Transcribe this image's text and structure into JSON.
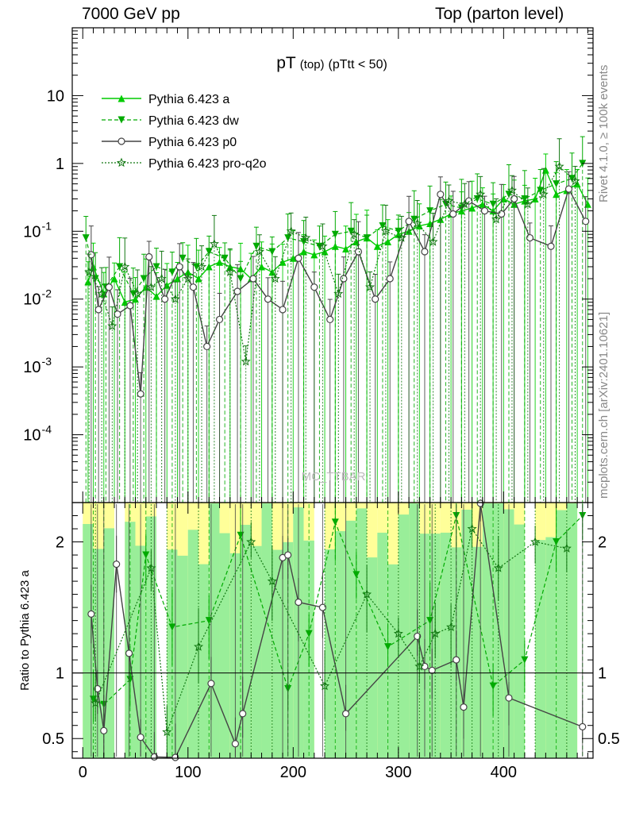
{
  "header": {
    "left": "7000 GeV pp",
    "right": "Top (parton level)"
  },
  "side_labels": {
    "rivet": "Rivet 4.1.0, ≥ 100k events",
    "mcplots": "mcplots.cern.ch [arXiv:2401.10621]"
  },
  "watermark": "MC_TTBAR",
  "colors": {
    "pythia_a": "#00cc00",
    "pythia_dw": "#00aa00",
    "pythia_p0": "#444444",
    "pythia_proq2o": "#117711",
    "band_green": "#99ee99",
    "band_yellow": "#ffff99"
  },
  "chart_data": [
    {
      "type": "line",
      "title": "pT",
      "title_sub": "(top)",
      "title_cut": "(pTtt < 50)",
      "xlabel": "",
      "ylabel": "",
      "yscale": "log",
      "ylim": [
        1e-05,
        100
      ],
      "xlim": [
        -10,
        485
      ],
      "ytick_labels": [
        "10",
        "1",
        "10^-1",
        "10^-2",
        "10^-3",
        "10^-4"
      ],
      "legend": [
        "Pythia 6.423 a",
        "Pythia 6.423 dw",
        "Pythia 6.423 p0",
        "Pythia 6.423 pro-q2o"
      ],
      "legend_position": "top-left",
      "series": [
        {
          "name": "Pythia 6.423 a",
          "x": [
            5,
            10,
            20,
            30,
            40,
            50,
            60,
            70,
            80,
            90,
            100,
            110,
            120,
            130,
            140,
            150,
            160,
            170,
            180,
            190,
            200,
            210,
            220,
            230,
            240,
            250,
            260,
            270,
            280,
            290,
            300,
            310,
            320,
            330,
            340,
            350,
            360,
            370,
            380,
            390,
            400,
            410,
            420,
            430,
            440,
            450,
            460,
            470,
            480
          ],
          "y": [
            0.018,
            0.03,
            0.012,
            0.02,
            0.009,
            0.01,
            0.015,
            0.011,
            0.016,
            0.02,
            0.025,
            0.02,
            0.03,
            0.035,
            0.03,
            0.028,
            0.02,
            0.03,
            0.025,
            0.035,
            0.04,
            0.05,
            0.045,
            0.05,
            0.06,
            0.055,
            0.07,
            0.08,
            0.06,
            0.07,
            0.09,
            0.1,
            0.12,
            0.13,
            0.15,
            0.18,
            0.2,
            0.22,
            0.25,
            0.2,
            0.3,
            0.25,
            0.28,
            0.3,
            0.8,
            0.35,
            0.4,
            0.5,
            0.25
          ]
        },
        {
          "name": "Pythia 6.423 dw",
          "x": [
            3,
            12,
            22,
            35,
            48,
            58,
            70,
            85,
            95,
            108,
            120,
            135,
            150,
            165,
            180,
            195,
            210,
            225,
            240,
            255,
            270,
            285,
            300,
            315,
            330,
            345,
            360,
            375,
            390,
            405,
            420,
            435,
            450,
            465,
            475
          ],
          "y": [
            0.08,
            0.02,
            0.015,
            0.03,
            0.012,
            0.02,
            0.03,
            0.025,
            0.04,
            0.03,
            0.05,
            0.04,
            0.02,
            0.06,
            0.05,
            0.08,
            0.07,
            0.06,
            0.09,
            0.1,
            0.08,
            0.12,
            0.1,
            0.15,
            0.2,
            0.25,
            0.22,
            0.3,
            0.25,
            0.35,
            0.3,
            0.4,
            0.5,
            0.6,
            1.0
          ]
        },
        {
          "name": "Pythia 6.423 p0",
          "x": [
            8,
            15,
            25,
            33,
            45,
            55,
            63,
            78,
            92,
            105,
            118,
            130,
            147,
            162,
            176,
            190,
            205,
            220,
            235,
            248,
            262,
            278,
            292,
            310,
            325,
            340,
            352,
            367,
            382,
            398,
            410,
            425,
            445,
            462,
            478
          ],
          "y": [
            0.045,
            0.007,
            0.015,
            0.006,
            0.008,
            0.0004,
            0.042,
            0.01,
            0.03,
            0.015,
            0.002,
            0.005,
            0.013,
            0.02,
            0.01,
            0.007,
            0.04,
            0.015,
            0.005,
            0.02,
            0.05,
            0.01,
            0.02,
            0.14,
            0.05,
            0.35,
            0.18,
            0.28,
            0.2,
            0.18,
            0.3,
            0.08,
            0.06,
            0.42,
            0.14
          ]
        },
        {
          "name": "Pythia 6.423 pro-q2o",
          "x": [
            6,
            18,
            28,
            40,
            52,
            65,
            75,
            88,
            100,
            113,
            125,
            140,
            155,
            168,
            183,
            198,
            212,
            228,
            243,
            258,
            273,
            288,
            303,
            318,
            333,
            348,
            363,
            378,
            393,
            408,
            423,
            438,
            453,
            468
          ],
          "y": [
            0.025,
            0.012,
            0.004,
            0.03,
            0.012,
            0.015,
            0.02,
            0.01,
            0.02,
            0.03,
            0.065,
            0.025,
            0.0012,
            0.05,
            0.02,
            0.1,
            0.08,
            0.06,
            0.012,
            0.09,
            0.015,
            0.1,
            0.08,
            0.13,
            0.07,
            0.28,
            0.25,
            0.35,
            0.15,
            0.4,
            0.25,
            0.35,
            0.9,
            0.55
          ]
        }
      ]
    },
    {
      "type": "line",
      "title": "",
      "xlabel": "",
      "ylabel": "Ratio to Pythia 6.423 a",
      "ylim": [
        0.35,
        2.3
      ],
      "xlim": [
        -10,
        485
      ],
      "x_ticks": [
        0,
        100,
        200,
        300,
        400
      ],
      "y_ticks": [
        0.5,
        1,
        2
      ],
      "reference": 1,
      "series": [
        {
          "name": "Pythia 6.423 dw",
          "x": [
            10,
            20,
            45,
            60,
            85,
            120,
            150,
            195,
            215,
            240,
            260,
            290,
            330,
            355,
            390,
            420,
            450,
            475
          ],
          "y": [
            0.8,
            0.76,
            0.95,
            1.9,
            1.35,
            1.4,
            2.05,
            0.88,
            1.3,
            2.15,
            1.75,
            1.2,
            1.4,
            2.2,
            0.9,
            1.1,
            2.0,
            2.2
          ]
        },
        {
          "name": "Pythia 6.423 p0",
          "x": [
            8,
            14,
            20,
            32,
            44,
            55,
            68,
            88,
            122,
            145,
            152,
            190,
            195,
            205,
            228,
            250,
            318,
            325,
            332,
            355,
            362,
            378,
            405,
            475
          ],
          "y": [
            1.45,
            0.88,
            0.56,
            1.83,
            1.15,
            0.51,
            0.36,
            0.34,
            0.92,
            0.46,
            0.69,
            1.88,
            1.9,
            1.54,
            1.5,
            0.69,
            1.28,
            1.05,
            1.02,
            1.1,
            0.74,
            2.3,
            0.81,
            0.59
          ]
        },
        {
          "name": "Pythia 6.423 pro-q2o",
          "x": [
            12,
            65,
            80,
            110,
            160,
            180,
            230,
            270,
            300,
            320,
            335,
            350,
            370,
            395,
            430,
            460
          ],
          "y": [
            0.77,
            1.8,
            0.55,
            1.2,
            2.0,
            1.7,
            0.9,
            1.6,
            1.3,
            1.05,
            1.3,
            1.35,
            2.1,
            1.8,
            2.0,
            1.95
          ]
        }
      ]
    }
  ]
}
